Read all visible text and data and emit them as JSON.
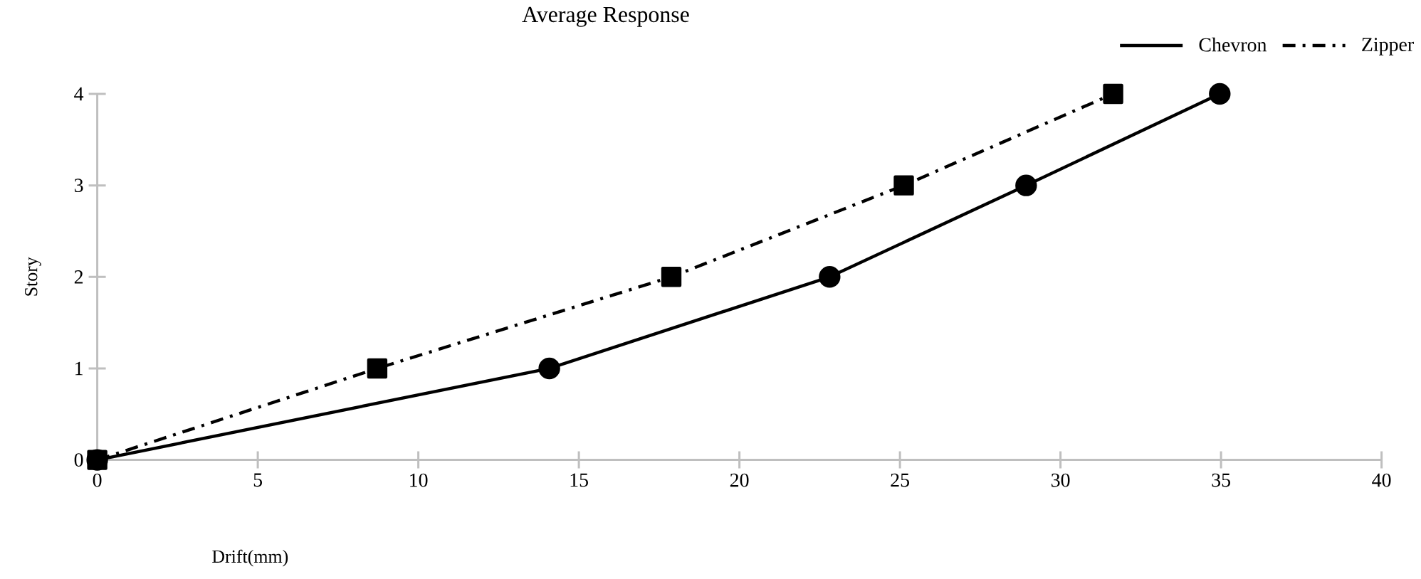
{
  "chart_data": {
    "type": "line",
    "title": "Average Response",
    "xlabel": "Drift(mm)",
    "ylabel": "Story",
    "xlim": [
      0,
      40
    ],
    "xticks": [
      0,
      5,
      10,
      15,
      20,
      25,
      30,
      35,
      40
    ],
    "ylim": [
      0,
      4
    ],
    "yticks": [
      0,
      1,
      2,
      3,
      4
    ],
    "grid": false,
    "legend": "top right",
    "series": [
      {
        "name": "Chevron",
        "color": "#000000",
        "marker": "circle",
        "line_style": "solid",
        "x": [
          0,
          14.08,
          22.81,
          28.93,
          34.96
        ],
        "values": [
          0,
          1,
          2,
          3,
          4
        ]
      },
      {
        "name": "Zipper",
        "color": "#000000",
        "marker": "square",
        "line_style": "dashed",
        "x": [
          0,
          8.72,
          17.88,
          25.12,
          31.64
        ],
        "values": [
          0,
          1,
          2,
          3,
          4
        ]
      }
    ]
  }
}
